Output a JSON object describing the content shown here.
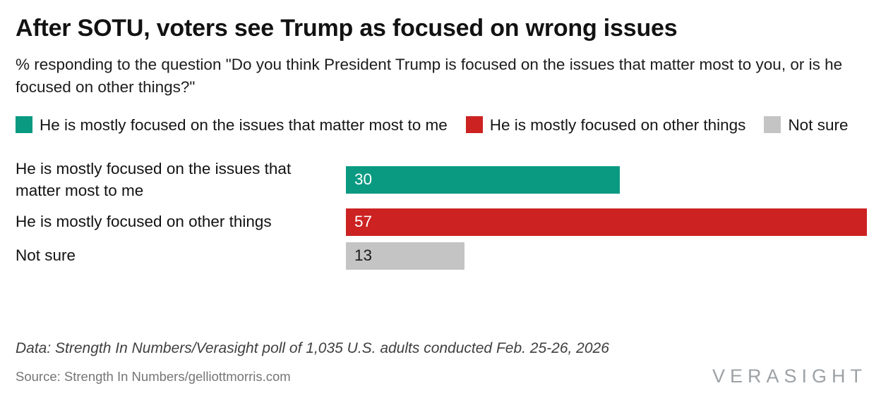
{
  "chart_data": {
    "type": "bar",
    "orientation": "horizontal",
    "title": "After SOTU, voters see Trump as focused on wrong issues",
    "subtitle": "% responding to the question \"Do you think President Trump is focused on the issues that matter most to you, or is he focused on other things?\"",
    "categories": [
      "He is mostly focused on the issues that matter most to me",
      "He is mostly focused on other things",
      "Not sure"
    ],
    "values": [
      30,
      57,
      13
    ],
    "bar_colors": [
      "#0A9A82",
      "#CC2222",
      "#C4C4C4"
    ],
    "value_label_colors": [
      "#ffffff",
      "#ffffff",
      "#1a1a1a"
    ],
    "xlim": [
      0,
      57
    ],
    "grid": false,
    "legend_position": "top",
    "value_labels": "inside-start",
    "legend": [
      {
        "label": "He is mostly focused on the issues that matter most to me",
        "color": "#0A9A82"
      },
      {
        "label": "He is mostly focused on other things",
        "color": "#CC2222"
      },
      {
        "label": "Not sure",
        "color": "#C4C4C4"
      }
    ]
  },
  "footer": {
    "data_note": "Data: Strength In Numbers/Verasight poll of 1,035 U.S. adults conducted Feb. 25-26, 2026",
    "source": "Source: Strength In Numbers/gelliottmorris.com",
    "logo": "VERASIGHT"
  }
}
